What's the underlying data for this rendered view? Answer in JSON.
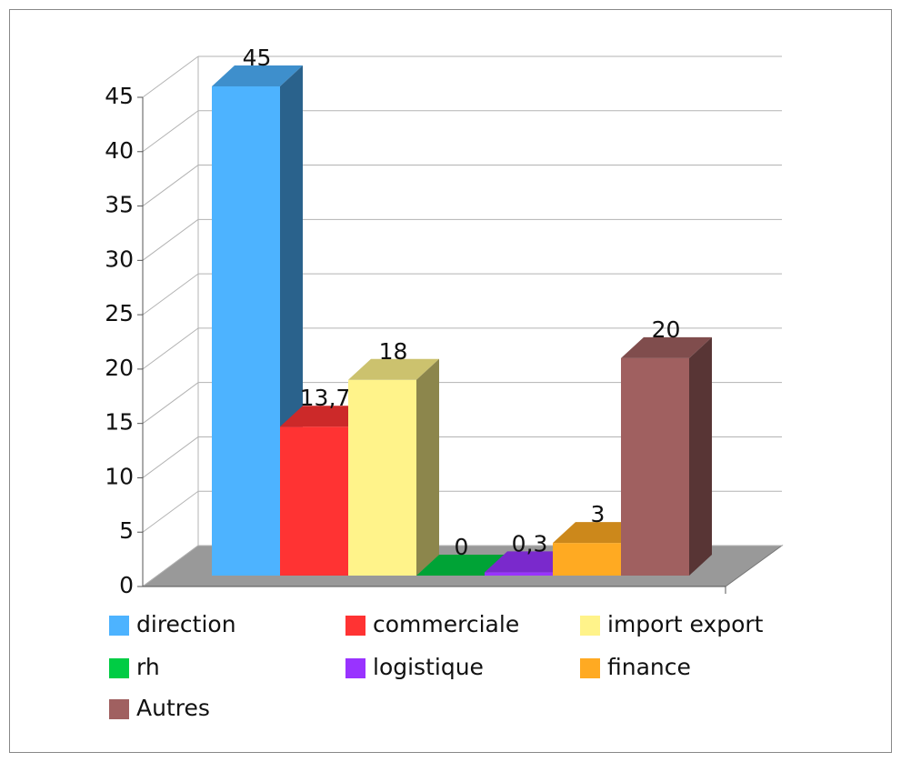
{
  "chart_data": {
    "type": "bar3d",
    "series": [
      {
        "name": "direction",
        "color": "#4db3ff",
        "values": [
          45
        ],
        "value_labels": [
          "45"
        ]
      },
      {
        "name": "commerciale",
        "color": "#ff3333",
        "values": [
          13.7
        ],
        "value_labels": [
          "13,7"
        ]
      },
      {
        "name": "import export",
        "color": "#fff38a",
        "values": [
          18
        ],
        "value_labels": [
          "18"
        ]
      },
      {
        "name": "rh",
        "color": "#00cc44",
        "values": [
          0
        ],
        "value_labels": [
          "0"
        ]
      },
      {
        "name": "logistique",
        "color": "#9933ff",
        "values": [
          0.3
        ],
        "value_labels": [
          "0,3"
        ]
      },
      {
        "name": "finance",
        "color": "#ffaa22",
        "values": [
          3
        ],
        "value_labels": [
          "3"
        ]
      },
      {
        "name": "Autres",
        "color": "#a06060",
        "values": [
          20
        ],
        "value_labels": [
          "20"
        ]
      }
    ],
    "ylim": [
      0,
      45
    ],
    "yticks": [
      0,
      5,
      10,
      15,
      20,
      25,
      30,
      35,
      40,
      45
    ],
    "grid": true,
    "legend": "bottom"
  }
}
